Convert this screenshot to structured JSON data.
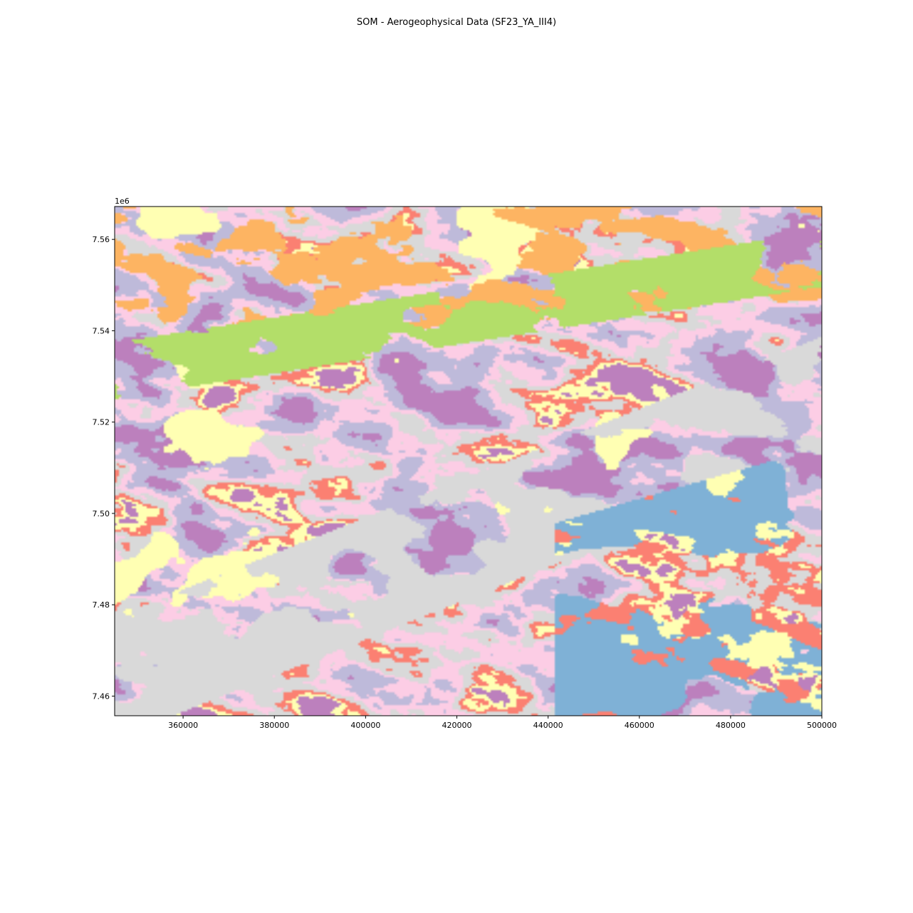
{
  "chart_data": {
    "type": "heatmap",
    "title": "SOM - Aerogeophysical Data (SF23_YA_III4)",
    "xlabel": "",
    "ylabel": "",
    "y_offset_text": "1e6",
    "xlim": [
      345000,
      500000
    ],
    "ylim": [
      7.4557,
      7.5672
    ],
    "x_ticks": [
      360000,
      380000,
      400000,
      420000,
      440000,
      460000,
      480000,
      500000
    ],
    "x_tick_labels": [
      "360000",
      "380000",
      "400000",
      "420000",
      "440000",
      "460000",
      "480000",
      "500000"
    ],
    "y_ticks": [
      7.46,
      7.48,
      7.5,
      7.52,
      7.54,
      7.56
    ],
    "y_tick_labels": [
      "7.46",
      "7.48",
      "7.50",
      "7.52",
      "7.54",
      "7.56"
    ],
    "grid": false,
    "legend": "none",
    "classes": [
      {
        "color": "#7fb1d6"
      },
      {
        "color": "#fb8072"
      },
      {
        "color": "#fdb462"
      },
      {
        "color": "#b3de69"
      },
      {
        "color": "#fccde5"
      },
      {
        "color": "#d9d9d9"
      },
      {
        "color": "#bc80bd"
      },
      {
        "color": "#bebada"
      },
      {
        "color": "#ffffb3"
      }
    ]
  }
}
